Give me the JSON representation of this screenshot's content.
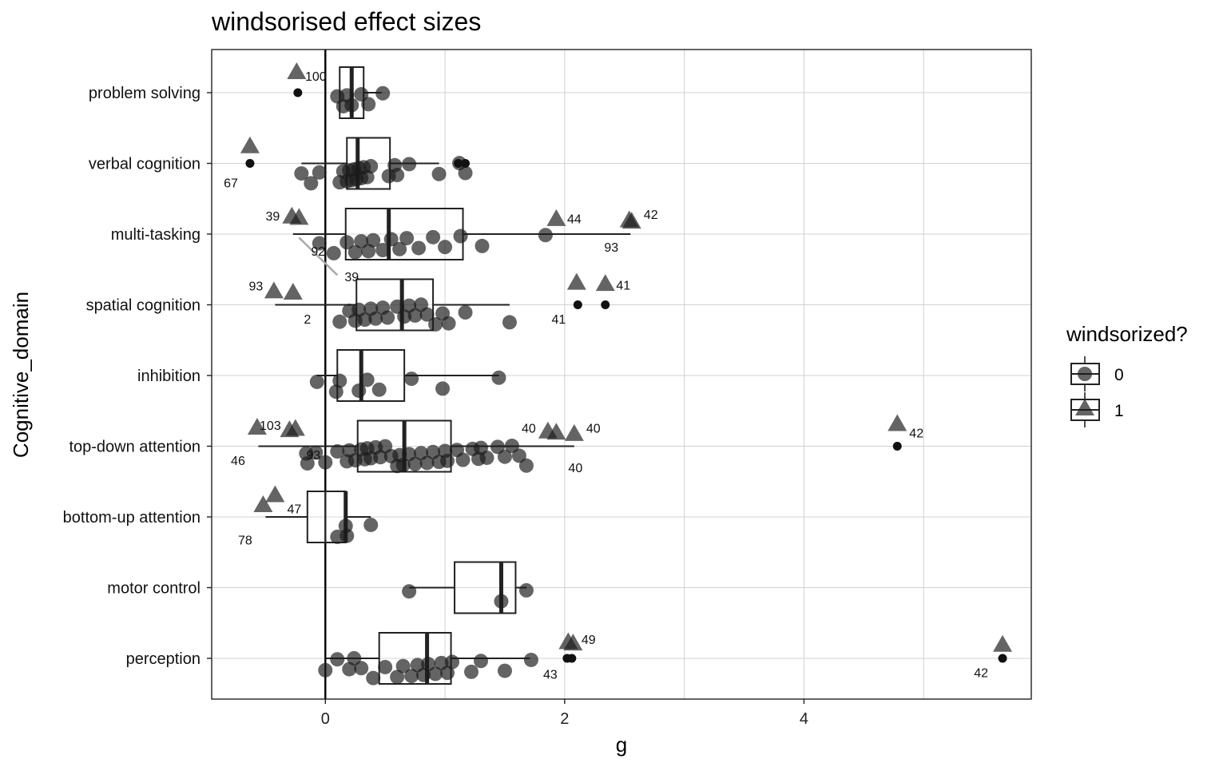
{
  "chart_data": {
    "type": "boxplot",
    "title": "windsorised effect sizes",
    "xlabel": "g",
    "ylabel": "Cognitive_domain",
    "xlim": [
      -0.95,
      5.9
    ],
    "x_ticks": [
      0,
      2,
      4
    ],
    "x_minor_gridlines": [
      1,
      3,
      5
    ],
    "grid": true,
    "reference_line_x": 0,
    "categories": [
      "problem solving",
      "verbal cognition",
      "multi-tasking",
      "spatial cognition",
      "inhibition",
      "top-down attention",
      "bottom-up attention",
      "motor control",
      "perception"
    ],
    "legend": {
      "title": "windsorized?",
      "position": "right",
      "entries": [
        {
          "label": "0",
          "shape": "circle"
        },
        {
          "label": "1",
          "shape": "triangle"
        }
      ]
    },
    "boxes": [
      {
        "category": "problem solving",
        "whisker_low": 0.12,
        "q1": 0.12,
        "median": 0.22,
        "q3": 0.32,
        "whisker_high": 0.47
      },
      {
        "category": "verbal cognition",
        "whisker_low": -0.2,
        "q1": 0.18,
        "median": 0.27,
        "q3": 0.54,
        "whisker_high": 0.95
      },
      {
        "category": "multi-tasking",
        "whisker_low": -0.27,
        "q1": 0.17,
        "median": 0.53,
        "q3": 1.15,
        "whisker_high": 2.55
      },
      {
        "category": "spatial cognition",
        "whisker_low": -0.42,
        "q1": 0.26,
        "median": 0.64,
        "q3": 0.9,
        "whisker_high": 1.54
      },
      {
        "category": "inhibition",
        "whisker_low": -0.07,
        "q1": 0.1,
        "median": 0.3,
        "q3": 0.66,
        "whisker_high": 1.45
      },
      {
        "category": "top-down attention",
        "whisker_low": -0.56,
        "q1": 0.27,
        "median": 0.66,
        "q3": 1.05,
        "whisker_high": 2.08
      },
      {
        "category": "bottom-up attention",
        "whisker_low": -0.5,
        "q1": -0.15,
        "median": 0.17,
        "q3": 0.17,
        "whisker_high": 0.38
      },
      {
        "category": "motor control",
        "whisker_low": 0.7,
        "q1": 1.08,
        "median": 1.47,
        "q3": 1.59,
        "whisker_high": 1.68
      },
      {
        "category": "perception",
        "whisker_low": 0.0,
        "q1": 0.45,
        "median": 0.85,
        "q3": 1.05,
        "whisker_high": 1.71
      }
    ],
    "points_windsorized_0": [
      {
        "category": "problem solving",
        "x": [
          0.1,
          0.15,
          0.18,
          0.22,
          0.3,
          0.36,
          0.48
        ]
      },
      {
        "category": "verbal cognition",
        "x": [
          -0.2,
          -0.12,
          -0.05,
          0.12,
          0.15,
          0.18,
          0.2,
          0.22,
          0.24,
          0.26,
          0.28,
          0.3,
          0.32,
          0.35,
          0.38,
          0.53,
          0.58,
          0.6,
          0.7,
          0.95,
          1.12,
          1.17
        ]
      },
      {
        "category": "multi-tasking",
        "x": [
          -0.05,
          0.07,
          0.18,
          0.25,
          0.3,
          0.36,
          0.4,
          0.48,
          0.55,
          0.62,
          0.68,
          0.78,
          0.9,
          1.0,
          1.13,
          1.31,
          1.84
        ]
      },
      {
        "category": "spatial cognition",
        "x": [
          0.12,
          0.2,
          0.25,
          0.28,
          0.33,
          0.38,
          0.42,
          0.48,
          0.52,
          0.6,
          0.66,
          0.7,
          0.75,
          0.8,
          0.85,
          0.92,
          0.98,
          1.03,
          1.17,
          1.54
        ]
      },
      {
        "category": "inhibition",
        "x": [
          -0.07,
          0.09,
          0.12,
          0.28,
          0.35,
          0.45,
          0.72,
          0.98,
          1.45
        ]
      },
      {
        "category": "top-down attention",
        "x": [
          -0.16,
          -0.15,
          -0.08,
          0.0,
          0.1,
          0.18,
          0.2,
          0.25,
          0.3,
          0.33,
          0.35,
          0.38,
          0.42,
          0.46,
          0.5,
          0.55,
          0.6,
          0.62,
          0.65,
          0.7,
          0.75,
          0.8,
          0.85,
          0.9,
          0.95,
          1.0,
          1.02,
          1.1,
          1.15,
          1.23,
          1.28,
          1.3,
          1.35,
          1.44,
          1.5,
          1.56,
          1.62,
          1.68
        ]
      },
      {
        "category": "bottom-up attention",
        "x": [
          0.1,
          0.17,
          0.18,
          0.38
        ]
      },
      {
        "category": "motor control",
        "x": [
          0.7,
          1.47,
          1.68
        ]
      },
      {
        "category": "perception",
        "x": [
          0.0,
          0.1,
          0.2,
          0.24,
          0.3,
          0.4,
          0.5,
          0.6,
          0.65,
          0.72,
          0.77,
          0.82,
          0.86,
          0.92,
          0.97,
          1.02,
          1.06,
          1.22,
          1.3,
          1.5,
          1.72
        ]
      }
    ],
    "original_values_small": [
      {
        "category": "problem solving",
        "x": [
          -0.23
        ]
      },
      {
        "category": "verbal cognition",
        "x": [
          -0.63,
          1.11,
          1.17
        ]
      },
      {
        "category": "spatial cognition",
        "x": [
          2.11,
          2.34
        ]
      },
      {
        "category": "top-down attention",
        "x": [
          4.78
        ]
      },
      {
        "category": "perception",
        "x": [
          2.02,
          2.06,
          5.66
        ]
      }
    ],
    "points_windsorized_1": [
      {
        "category": "problem solving",
        "x": [
          -0.24
        ]
      },
      {
        "category": "verbal cognition",
        "x": [
          -0.63
        ]
      },
      {
        "category": "multi-tasking",
        "x": [
          -0.28,
          -0.22,
          1.93,
          2.54,
          2.56
        ]
      },
      {
        "category": "spatial cognition",
        "x": [
          -0.43,
          -0.27,
          2.1,
          2.34
        ]
      },
      {
        "category": "top-down attention",
        "x": [
          -0.57,
          -0.25,
          -0.3,
          1.86,
          1.93,
          2.08,
          4.78
        ]
      },
      {
        "category": "bottom-up attention",
        "x": [
          -0.52,
          -0.42
        ]
      },
      {
        "category": "perception",
        "x": [
          2.03,
          2.07,
          5.66
        ]
      }
    ],
    "annotations": [
      {
        "category": "problem solving",
        "text": "100",
        "x": -0.08,
        "y_offset": -0.24
      },
      {
        "category": "verbal cognition",
        "text": "67",
        "x": -0.79,
        "y_offset": 0.27
      },
      {
        "category": "multi-tasking",
        "text": "39",
        "x": -0.44,
        "y_offset": -0.26
      },
      {
        "category": "multi-tasking",
        "text": "44",
        "x": 2.08,
        "y_offset": -0.22
      },
      {
        "category": "multi-tasking",
        "text": "42",
        "x": 2.72,
        "y_offset": -0.28
      },
      {
        "category": "multi-tasking",
        "text": "93",
        "x": 2.39,
        "y_offset": 0.18
      },
      {
        "category": "multi-tasking",
        "text": "92",
        "x": -0.06,
        "y_offset": 0.24
      },
      {
        "category": "multi-tasking",
        "text": "39",
        "x": 0.22,
        "y_offset": 0.6
      },
      {
        "category": "spatial cognition",
        "text": "93",
        "x": -0.58,
        "y_offset": -0.27
      },
      {
        "category": "spatial cognition",
        "text": "41",
        "x": 2.49,
        "y_offset": -0.28
      },
      {
        "category": "spatial cognition",
        "text": "2",
        "x": -0.15,
        "y_offset": 0.2
      },
      {
        "category": "spatial cognition",
        "text": "41",
        "x": 1.95,
        "y_offset": 0.2
      },
      {
        "category": "top-down attention",
        "text": "103",
        "x": -0.46,
        "y_offset": -0.3
      },
      {
        "category": "top-down attention",
        "text": "40",
        "x": 1.7,
        "y_offset": -0.26
      },
      {
        "category": "top-down attention",
        "text": "40",
        "x": 2.24,
        "y_offset": -0.26
      },
      {
        "category": "top-down attention",
        "text": "42",
        "x": 4.94,
        "y_offset": -0.19
      },
      {
        "category": "top-down attention",
        "text": "46",
        "x": -0.73,
        "y_offset": 0.2
      },
      {
        "category": "top-down attention",
        "text": "93",
        "x": -0.1,
        "y_offset": 0.12
      },
      {
        "category": "top-down attention",
        "text": "40",
        "x": 2.09,
        "y_offset": 0.3
      },
      {
        "category": "bottom-up attention",
        "text": "47",
        "x": -0.26,
        "y_offset": -0.12
      },
      {
        "category": "bottom-up attention",
        "text": "78",
        "x": -0.67,
        "y_offset": 0.32
      },
      {
        "category": "perception",
        "text": "49",
        "x": 2.2,
        "y_offset": -0.27
      },
      {
        "category": "perception",
        "text": "43",
        "x": 1.88,
        "y_offset": 0.22
      },
      {
        "category": "perception",
        "text": "42",
        "x": 5.48,
        "y_offset": 0.2
      }
    ],
    "connector_segments": [
      {
        "category": "multi-tasking",
        "x1": -0.22,
        "y1_offset": 0.05,
        "x2": 0.1,
        "y2_offset": 0.58
      }
    ]
  }
}
